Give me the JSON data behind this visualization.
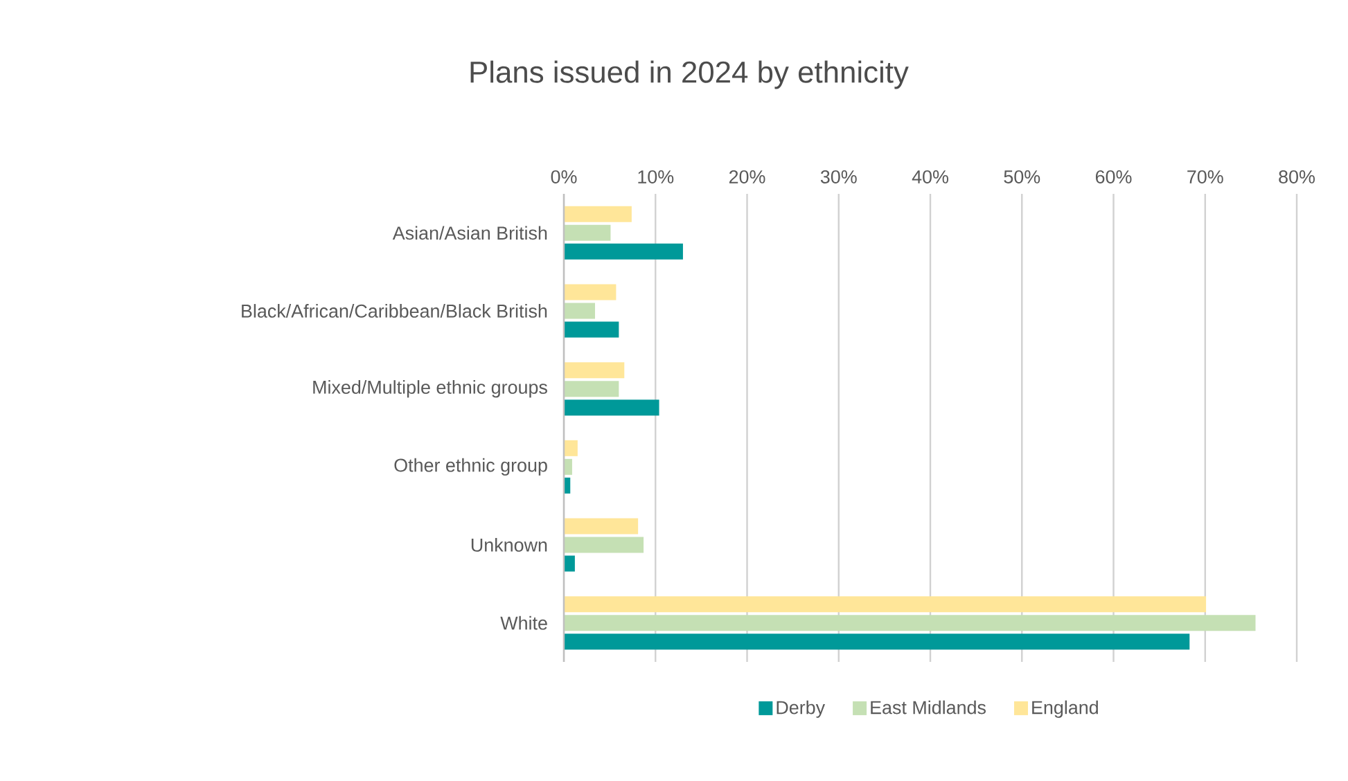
{
  "chart_data": {
    "type": "bar",
    "orientation": "horizontal",
    "title": "Plans issued in 2024 by ethnicity",
    "categories": [
      "Asian/Asian British",
      "Black/African/Caribbean/Black British",
      "Mixed/Multiple ethnic groups",
      "Other ethnic group",
      "Unknown",
      "White"
    ],
    "series": [
      {
        "name": "Derby",
        "color": "#009999",
        "values": [
          13.0,
          6.0,
          10.4,
          0.7,
          1.2,
          68.3
        ]
      },
      {
        "name": "East Midlands",
        "color": "#c5e0b4",
        "values": [
          5.1,
          3.4,
          6.0,
          0.9,
          8.7,
          75.5
        ]
      },
      {
        "name": "England",
        "color": "#ffe699",
        "values": [
          7.4,
          5.7,
          6.6,
          1.5,
          8.1,
          70.1
        ]
      }
    ],
    "xlim": [
      0,
      80
    ],
    "xticks": [
      {
        "value": 0,
        "label": "0%"
      },
      {
        "value": 10,
        "label": "10%"
      },
      {
        "value": 20,
        "label": "20%"
      },
      {
        "value": 30,
        "label": "30%"
      },
      {
        "value": 40,
        "label": "40%"
      },
      {
        "value": 50,
        "label": "50%"
      },
      {
        "value": 60,
        "label": "60%"
      },
      {
        "value": 70,
        "label": "70%"
      },
      {
        "value": 80,
        "label": "80%"
      }
    ],
    "grid": "x",
    "legend": "bottom"
  }
}
